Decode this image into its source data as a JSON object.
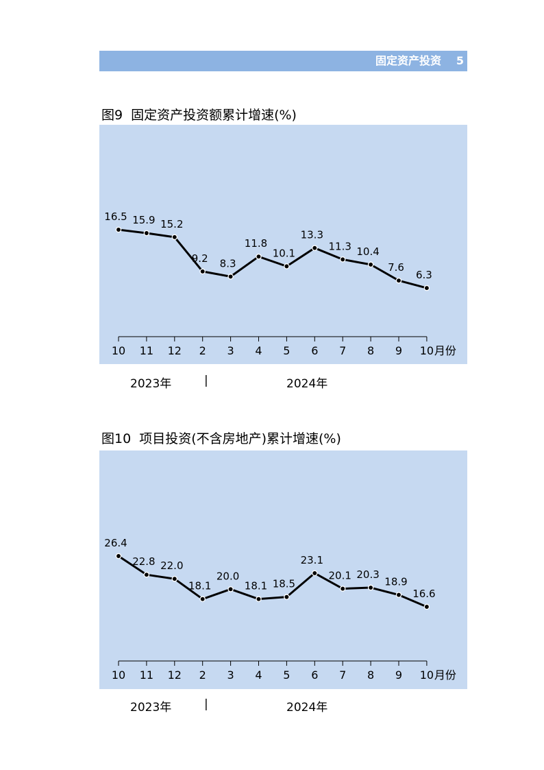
{
  "header": {
    "section": "固定资产投资",
    "page": "5"
  },
  "charts": [
    {
      "num": "图9",
      "title": "固定资产投资额累计增速(%)"
    },
    {
      "num": "图10",
      "title": "项目投资(不含房地产)累计增速(%)"
    }
  ],
  "years": {
    "y2023": "2023年",
    "sep": "|",
    "y2024": "2024年"
  },
  "chart_data": [
    {
      "type": "line",
      "title": "固定资产投资额累计增速(%)",
      "categories": [
        "10",
        "11",
        "12",
        "2",
        "3",
        "4",
        "5",
        "6",
        "7",
        "8",
        "9",
        "10"
      ],
      "x_unit": "月份",
      "values": [
        16.5,
        15.9,
        15.2,
        9.2,
        8.3,
        11.8,
        10.1,
        13.3,
        11.3,
        10.4,
        7.6,
        6.3
      ],
      "labels": [
        "16.5",
        "15.9",
        "15.2",
        "9.2",
        "8.3",
        "11.8",
        "10.1",
        "13.3",
        "11.3",
        "10.4",
        "7.6",
        "6.3"
      ],
      "grid": false
    },
    {
      "type": "line",
      "title": "项目投资(不含房地产)累计增速(%)",
      "categories": [
        "10",
        "11",
        "12",
        "2",
        "3",
        "4",
        "5",
        "6",
        "7",
        "8",
        "9",
        "10"
      ],
      "x_unit": "月份",
      "values": [
        26.4,
        22.8,
        22.0,
        18.1,
        20.0,
        18.1,
        18.5,
        23.1,
        20.1,
        20.3,
        18.9,
        16.6
      ],
      "labels": [
        "26.4",
        "22.8",
        "22.0",
        "18.1",
        "20.0",
        "18.1",
        "18.5",
        "23.1",
        "20.1",
        "20.3",
        "18.9",
        "16.6"
      ],
      "grid": false
    }
  ]
}
